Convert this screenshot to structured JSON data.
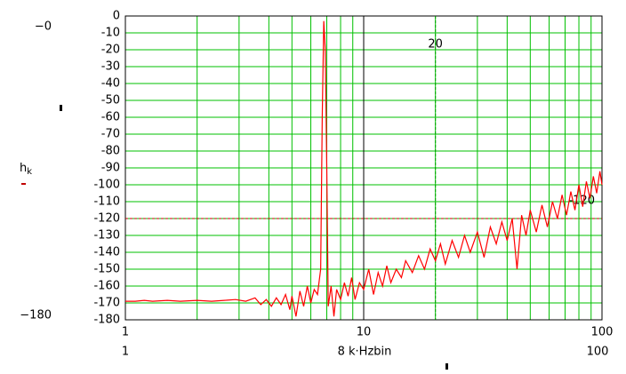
{
  "chart_data": {
    "type": "line",
    "xscale": "log",
    "grid": true,
    "grid_color": "#00c000",
    "major_grid_color": "#000000",
    "x_label": "8 k·Hzbin",
    "y_label": {
      "base": "h",
      "sub": "k"
    },
    "axis_limit_labels": {
      "y_top": "−0",
      "y_bottom": "−180",
      "x_left": "1",
      "x_right": "100"
    },
    "markers": {
      "x": 20,
      "y": -120,
      "x_color": "#00a000",
      "y_color": "#c00000"
    },
    "xlim": [
      1,
      100
    ],
    "xticks": [
      1,
      10,
      100
    ],
    "ylim": [
      -180,
      0
    ],
    "yticks": [
      0,
      -10,
      -20,
      -30,
      -40,
      -50,
      -60,
      -70,
      -80,
      -90,
      -100,
      -110,
      -120,
      -130,
      -140,
      -150,
      -160,
      -170,
      -180
    ],
    "series": [
      {
        "color": "#ff0000",
        "x": [
          1,
          1.1,
          1.2,
          1.3,
          1.5,
          1.7,
          2.0,
          2.3,
          2.6,
          2.9,
          3.2,
          3.5,
          3.7,
          3.9,
          4.1,
          4.3,
          4.5,
          4.7,
          4.9,
          5.0,
          5.2,
          5.4,
          5.6,
          5.8,
          6.0,
          6.2,
          6.4,
          6.6,
          6.7,
          6.8,
          6.9,
          7.0,
          7.1,
          7.3,
          7.5,
          7.7,
          8.0,
          8.3,
          8.6,
          8.9,
          9.2,
          9.6,
          10,
          10.5,
          11,
          11.5,
          12,
          12.5,
          13,
          13.7,
          14.4,
          15,
          16,
          17,
          18,
          19,
          20,
          21,
          22,
          23.5,
          25,
          26.5,
          28,
          30,
          32,
          34,
          36,
          38,
          40,
          42,
          44,
          46,
          48,
          50,
          53,
          56,
          59,
          62,
          65,
          68,
          71,
          74,
          77,
          80,
          83,
          86,
          89,
          92,
          95,
          98,
          100
        ],
        "values": [
          -169,
          -169,
          -168.5,
          -169,
          -168.5,
          -169,
          -168.5,
          -169,
          -168.5,
          -168,
          -169,
          -167,
          -171,
          -168,
          -172,
          -167,
          -171,
          -165,
          -174,
          -166,
          -178,
          -163,
          -172,
          -160,
          -170,
          -162,
          -165,
          -150,
          -60,
          -3,
          -20,
          -90,
          -172,
          -160,
          -178,
          -162,
          -168,
          -158,
          -166,
          -155,
          -168,
          -158,
          -162,
          -150,
          -165,
          -152,
          -160,
          -148,
          -158,
          -150,
          -155,
          -145,
          -152,
          -142,
          -150,
          -138,
          -145,
          -135,
          -147,
          -133,
          -143,
          -130,
          -140,
          -128,
          -143,
          -125,
          -135,
          -122,
          -133,
          -120,
          -150,
          -118,
          -130,
          -115,
          -128,
          -112,
          -125,
          -110,
          -120,
          -106,
          -118,
          -104,
          -115,
          -100,
          -113,
          -98,
          -108,
          -95,
          -105,
          -92,
          -100
        ]
      }
    ]
  }
}
